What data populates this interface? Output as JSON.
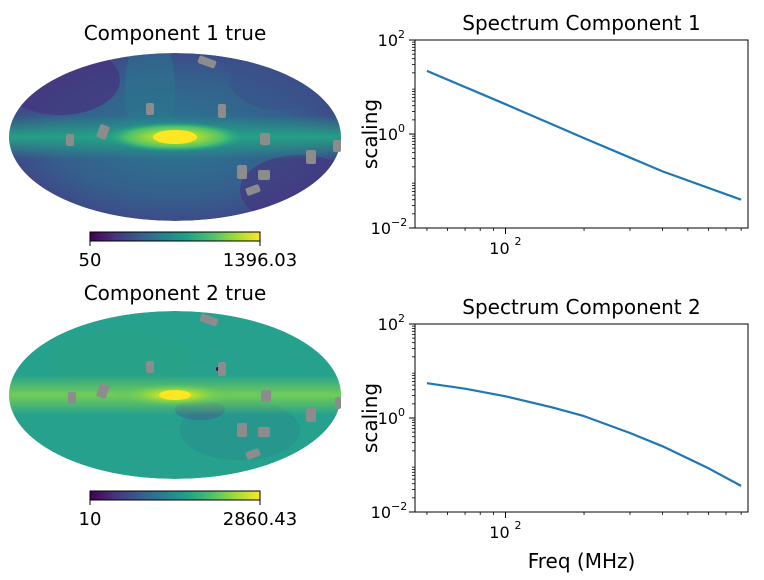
{
  "colors": {
    "line": "#1f77b4",
    "mask": "#8c8c8c",
    "viridis": [
      "#440154",
      "#46327e",
      "#365c8d",
      "#277f8e",
      "#1fa187",
      "#4ac16d",
      "#a0da39",
      "#fde725"
    ]
  },
  "chart_data": [
    {
      "type": "heatmap",
      "projection": "mollweide",
      "title": "Component 1 true",
      "colormap": "viridis",
      "colorbar": {
        "min": 50,
        "max": 1396.03,
        "min_label": "50",
        "max_label": "1396.03"
      }
    },
    {
      "type": "line",
      "title": "Spectrum Component 1",
      "xlabel": "",
      "ylabel": "scaling",
      "xscale": "log",
      "yscale": "log",
      "xlim": [
        45,
        850
      ],
      "ylim": [
        0.01,
        100
      ],
      "x_ticks": [
        {
          "value": 100,
          "base": "10",
          "exp": "2"
        }
      ],
      "y_ticks": [
        {
          "value": 100,
          "base": "10",
          "exp": "2"
        },
        {
          "value": 1,
          "base": "10",
          "exp": "0"
        },
        {
          "value": 0.01,
          "base": "10",
          "exp": "−2"
        }
      ],
      "series": [
        {
          "name": "Component 1",
          "x": [
            50,
            100,
            200,
            400,
            800
          ],
          "y": [
            22,
            4.3,
            0.82,
            0.16,
            0.04
          ]
        }
      ]
    },
    {
      "type": "heatmap",
      "projection": "mollweide",
      "title": "Component 2 true",
      "colormap": "viridis",
      "colorbar": {
        "min": 10,
        "max": 2860.43,
        "min_label": "10",
        "max_label": "2860.43"
      }
    },
    {
      "type": "line",
      "title": "Spectrum Component 2",
      "xlabel": "Freq (MHz)",
      "ylabel": "scaling",
      "xscale": "log",
      "yscale": "log",
      "xlim": [
        45,
        850
      ],
      "ylim": [
        0.01,
        100
      ],
      "x_ticks": [
        {
          "value": 100,
          "base": "10",
          "exp": "2"
        }
      ],
      "y_ticks": [
        {
          "value": 100,
          "base": "10",
          "exp": "2"
        },
        {
          "value": 1,
          "base": "10",
          "exp": "0"
        },
        {
          "value": 0.01,
          "base": "10",
          "exp": "−2"
        }
      ],
      "series": [
        {
          "name": "Component 2",
          "x": [
            50,
            70,
            100,
            150,
            200,
            300,
            400,
            600,
            800
          ],
          "y": [
            5.5,
            4.2,
            2.9,
            1.7,
            1.1,
            0.48,
            0.25,
            0.085,
            0.036
          ]
        }
      ]
    }
  ]
}
